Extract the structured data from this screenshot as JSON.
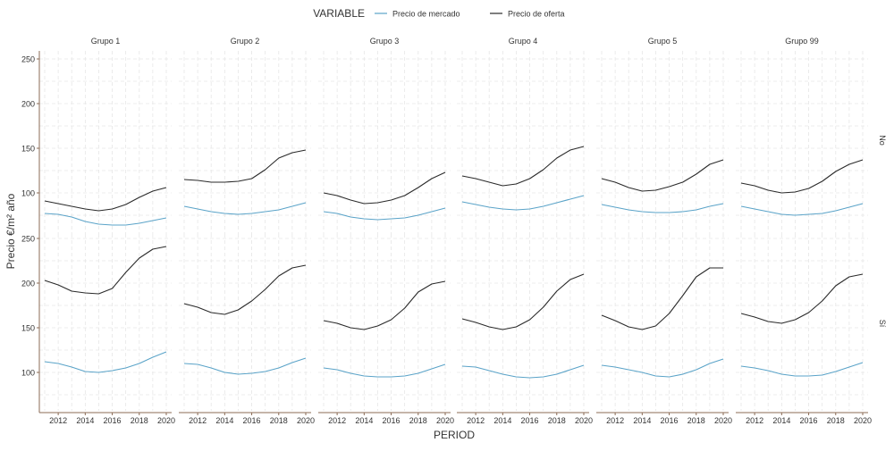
{
  "chart_data": {
    "type": "line",
    "legend": {
      "title": "VARIABLE",
      "position": "top",
      "entries": [
        {
          "name": "Precio de mercado",
          "color": "#5aa3c8"
        },
        {
          "name": "Precio de oferta",
          "color": "#2a2a2a"
        }
      ]
    },
    "xlabel": "PERIOD",
    "ylabel": "Precio €/m² año",
    "x": [
      2011,
      2012,
      2013,
      2014,
      2015,
      2016,
      2017,
      2018,
      2019,
      2020
    ],
    "xticks": [
      "2012",
      "2014",
      "2016",
      "2018",
      "2020"
    ],
    "ylim": [
      55,
      250
    ],
    "yticks": [
      "100",
      "150",
      "200",
      "250"
    ],
    "grid": true,
    "columns": [
      "Grupo 1",
      "Grupo 2",
      "Grupo 3",
      "Grupo 4",
      "Grupo 5",
      "Grupo 99"
    ],
    "rows": [
      "No",
      "Sí"
    ],
    "panels": [
      {
        "column": "Grupo 1",
        "row": "No",
        "series": [
          {
            "name": "Precio de mercado",
            "values": [
              77,
              76,
              73,
              68,
              65,
              64,
              64,
              66,
              69,
              72
            ]
          },
          {
            "name": "Precio de oferta",
            "values": [
              91,
              88,
              85,
              82,
              80,
              82,
              87,
              95,
              102,
              106
            ]
          }
        ]
      },
      {
        "column": "Grupo 2",
        "row": "No",
        "series": [
          {
            "name": "Precio de mercado",
            "values": [
              85,
              82,
              79,
              77,
              76,
              77,
              79,
              81,
              85,
              89
            ]
          },
          {
            "name": "Precio de oferta",
            "values": [
              115,
              114,
              112,
              112,
              113,
              116,
              126,
              139,
              145,
              148
            ]
          }
        ]
      },
      {
        "column": "Grupo 3",
        "row": "No",
        "series": [
          {
            "name": "Precio de mercado",
            "values": [
              79,
              77,
              73,
              71,
              70,
              71,
              72,
              75,
              79,
              83
            ]
          },
          {
            "name": "Precio de oferta",
            "values": [
              100,
              97,
              92,
              88,
              89,
              92,
              97,
              106,
              116,
              123
            ]
          }
        ]
      },
      {
        "column": "Grupo 4",
        "row": "No",
        "series": [
          {
            "name": "Precio de mercado",
            "values": [
              90,
              87,
              84,
              82,
              81,
              82,
              85,
              89,
              93,
              97
            ]
          },
          {
            "name": "Precio de oferta",
            "values": [
              119,
              116,
              112,
              108,
              110,
              116,
              126,
              139,
              148,
              152
            ]
          }
        ]
      },
      {
        "column": "Grupo 5",
        "row": "No",
        "series": [
          {
            "name": "Precio de mercado",
            "values": [
              87,
              84,
              81,
              79,
              78,
              78,
              79,
              81,
              85,
              88
            ]
          },
          {
            "name": "Precio de oferta",
            "values": [
              116,
              112,
              106,
              102,
              103,
              107,
              112,
              121,
              132,
              137
            ]
          }
        ]
      },
      {
        "column": "Grupo 99",
        "row": "No",
        "series": [
          {
            "name": "Precio de mercado",
            "values": [
              85,
              82,
              79,
              76,
              75,
              76,
              77,
              80,
              84,
              88
            ]
          },
          {
            "name": "Precio de oferta",
            "values": [
              111,
              108,
              103,
              100,
              101,
              105,
              113,
              124,
              132,
              137
            ]
          }
        ]
      },
      {
        "column": "Grupo 1",
        "row": "Sí",
        "series": [
          {
            "name": "Precio de mercado",
            "values": [
              112,
              110,
              106,
              101,
              100,
              102,
              105,
              110,
              117,
              123
            ]
          },
          {
            "name": "Precio de oferta",
            "values": [
              203,
              198,
              191,
              189,
              188,
              194,
              212,
              228,
              238,
              241
            ]
          }
        ]
      },
      {
        "column": "Grupo 2",
        "row": "Sí",
        "series": [
          {
            "name": "Precio de mercado",
            "values": [
              110,
              109,
              105,
              100,
              98,
              99,
              101,
              105,
              111,
              116
            ]
          },
          {
            "name": "Precio de oferta",
            "values": [
              177,
              173,
              167,
              165,
              170,
              180,
              193,
              208,
              217,
              220
            ]
          }
        ]
      },
      {
        "column": "Grupo 3",
        "row": "Sí",
        "series": [
          {
            "name": "Precio de mercado",
            "values": [
              105,
              103,
              99,
              96,
              95,
              95,
              96,
              99,
              104,
              109
            ]
          },
          {
            "name": "Precio de oferta",
            "values": [
              158,
              155,
              150,
              148,
              152,
              159,
              172,
              190,
              199,
              202
            ]
          }
        ]
      },
      {
        "column": "Grupo 4",
        "row": "Sí",
        "series": [
          {
            "name": "Precio de mercado",
            "values": [
              107,
              106,
              102,
              98,
              95,
              94,
              95,
              98,
              103,
              108
            ]
          },
          {
            "name": "Precio de oferta",
            "values": [
              160,
              156,
              151,
              148,
              151,
              159,
              173,
              191,
              204,
              210
            ]
          }
        ]
      },
      {
        "column": "Grupo 5",
        "row": "Sí",
        "series": [
          {
            "name": "Precio de mercado",
            "values": [
              108,
              106,
              103,
              100,
              96,
              95,
              98,
              103,
              110,
              115
            ]
          },
          {
            "name": "Precio de oferta",
            "values": [
              164,
              158,
              151,
              148,
              152,
              166,
              186,
              207,
              217,
              217
            ]
          }
        ]
      },
      {
        "column": "Grupo 99",
        "row": "Sí",
        "series": [
          {
            "name": "Precio de mercado",
            "values": [
              107,
              105,
              102,
              98,
              96,
              96,
              97,
              101,
              106,
              111
            ]
          },
          {
            "name": "Precio de oferta",
            "values": [
              166,
              162,
              157,
              155,
              159,
              167,
              180,
              197,
              207,
              210
            ]
          }
        ]
      }
    ]
  }
}
